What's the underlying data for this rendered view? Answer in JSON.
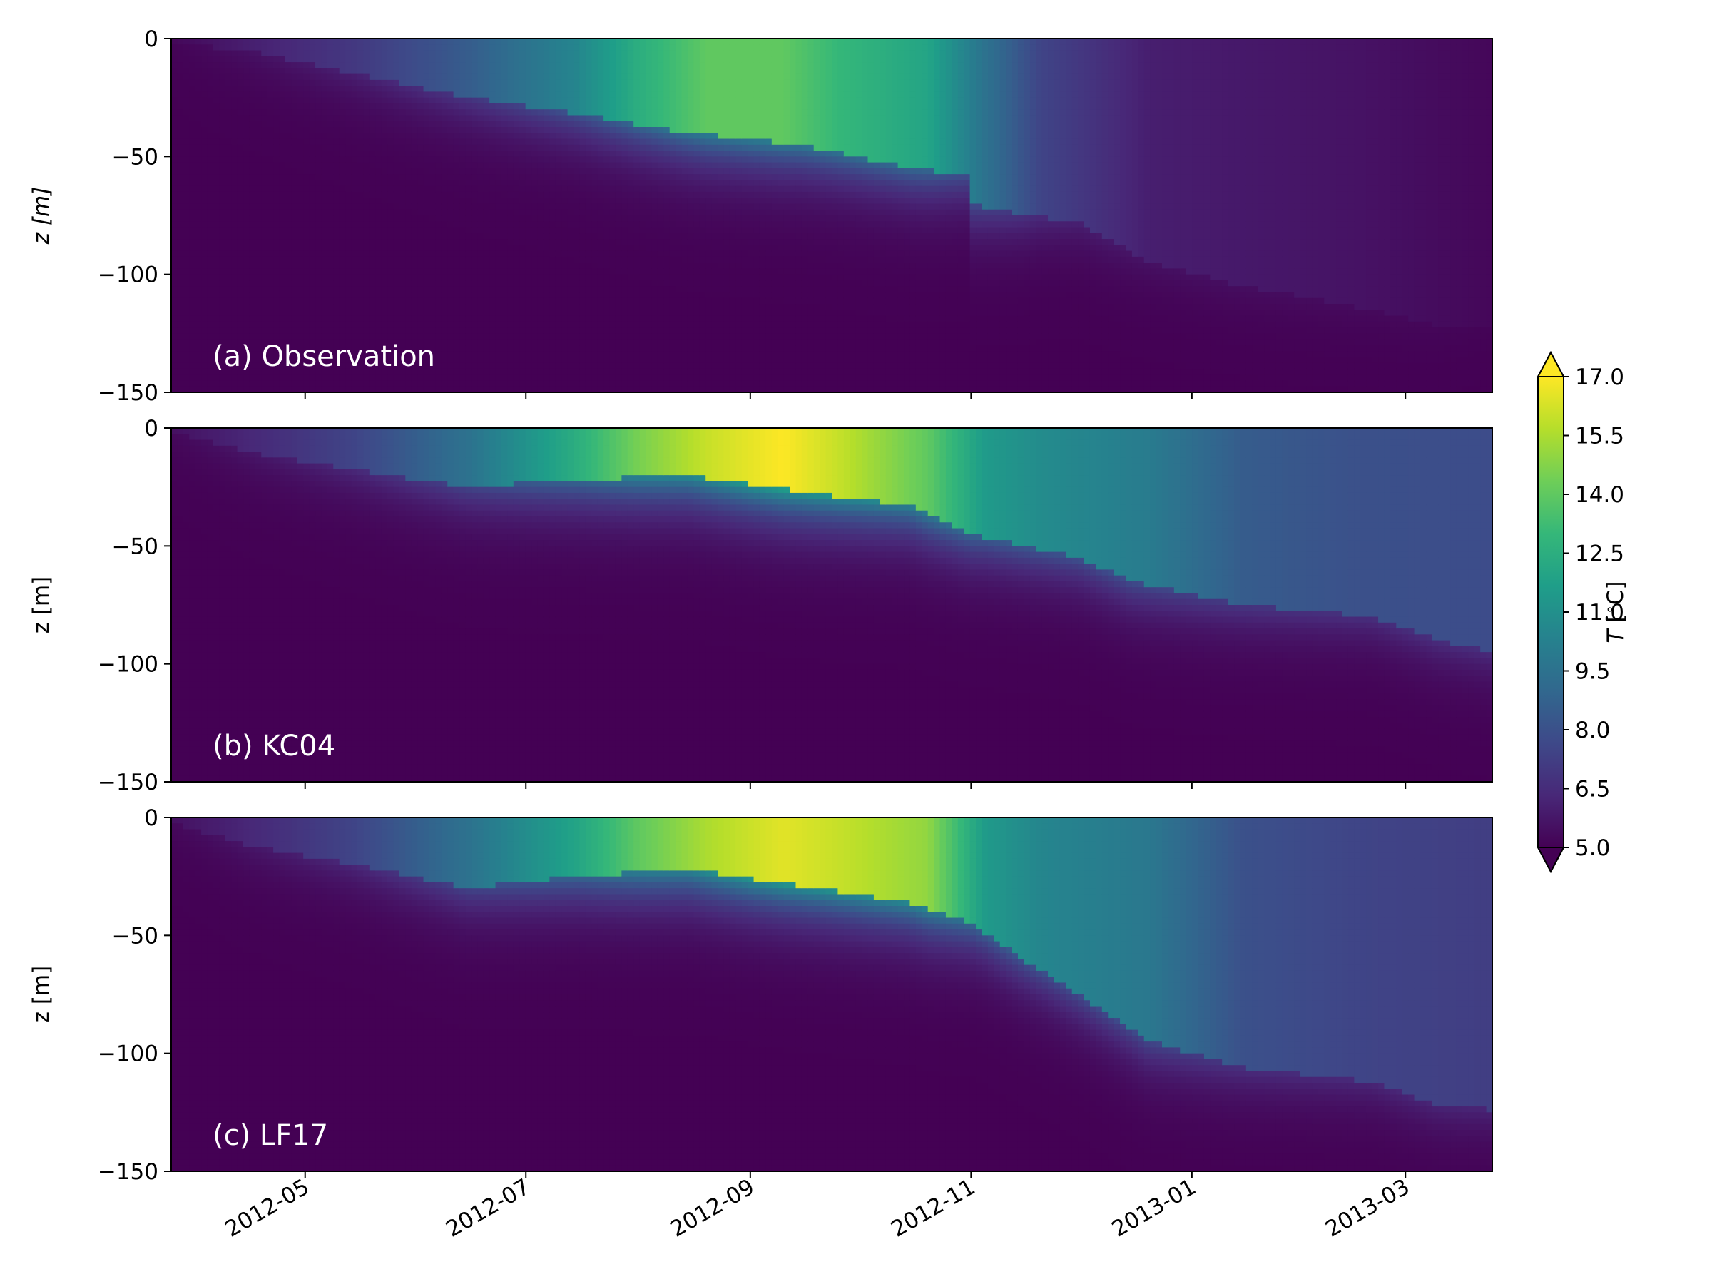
{
  "chart_data": [
    {
      "type": "heatmap",
      "panel_label": "(a) Observation",
      "ylabel": "z [m]",
      "ylim": [
        -150,
        0
      ],
      "yticks": [
        0,
        -50,
        -100,
        -150
      ],
      "mixed_layer_depth": [
        {
          "date": "2012-03-25",
          "z": -2
        },
        {
          "date": "2012-04-15",
          "z": -5
        },
        {
          "date": "2012-05-15",
          "z": -15
        },
        {
          "date": "2012-06-15",
          "z": -25
        },
        {
          "date": "2012-07-15",
          "z": -32
        },
        {
          "date": "2012-08-15",
          "z": -40
        },
        {
          "date": "2012-09-15",
          "z": -45
        },
        {
          "date": "2012-10-15",
          "z": -55
        },
        {
          "date": "2012-10-31",
          "z": -58
        },
        {
          "date": "2012-11-01",
          "z": -70
        },
        {
          "date": "2012-11-15",
          "z": -75
        },
        {
          "date": "2012-12-01",
          "z": -78
        },
        {
          "date": "2012-12-20",
          "z": -95
        },
        {
          "date": "2013-01-15",
          "z": -105
        },
        {
          "date": "2013-02-20",
          "z": -115
        },
        {
          "date": "2013-03-10",
          "z": -122
        },
        {
          "date": "2013-03-25",
          "z": -122
        }
      ],
      "surface_temperature": [
        {
          "date": "2012-03-25",
          "T": 5.2
        },
        {
          "date": "2012-04-15",
          "T": 6.0
        },
        {
          "date": "2012-05-15",
          "T": 7.0
        },
        {
          "date": "2012-06-15",
          "T": 8.5
        },
        {
          "date": "2012-07-15",
          "T": 10.5
        },
        {
          "date": "2012-08-01",
          "T": 12.5
        },
        {
          "date": "2012-08-20",
          "T": 14.0
        },
        {
          "date": "2012-09-10",
          "T": 14.0
        },
        {
          "date": "2012-09-25",
          "T": 13.0
        },
        {
          "date": "2012-10-20",
          "T": 12.0
        },
        {
          "date": "2012-11-05",
          "T": 9.5
        },
        {
          "date": "2012-11-20",
          "T": 7.5
        },
        {
          "date": "2012-12-20",
          "T": 6.0
        },
        {
          "date": "2013-01-15",
          "T": 5.8
        },
        {
          "date": "2013-02-15",
          "T": 5.6
        },
        {
          "date": "2013-03-25",
          "T": 5.2
        }
      ]
    },
    {
      "type": "heatmap",
      "panel_label": "(b) KC04",
      "ylabel": "z [m]",
      "ylim": [
        -150,
        0
      ],
      "yticks": [
        0,
        -50,
        -100,
        -150
      ],
      "mixed_layer_depth": [
        {
          "date": "2012-03-25",
          "z": -2
        },
        {
          "date": "2012-04-15",
          "z": -10
        },
        {
          "date": "2012-05-15",
          "z": -18
        },
        {
          "date": "2012-06-15",
          "z": -25
        },
        {
          "date": "2012-07-15",
          "z": -22
        },
        {
          "date": "2012-08-15",
          "z": -20
        },
        {
          "date": "2012-09-01",
          "z": -24
        },
        {
          "date": "2012-09-20",
          "z": -28
        },
        {
          "date": "2012-10-15",
          "z": -33
        },
        {
          "date": "2012-11-01",
          "z": -45
        },
        {
          "date": "2012-11-15",
          "z": -50
        },
        {
          "date": "2012-12-01",
          "z": -55
        },
        {
          "date": "2012-12-15",
          "z": -65
        },
        {
          "date": "2013-01-15",
          "z": -75
        },
        {
          "date": "2013-02-20",
          "z": -80
        },
        {
          "date": "2013-03-10",
          "z": -90
        },
        {
          "date": "2013-03-25",
          "z": -95
        }
      ],
      "surface_temperature": [
        {
          "date": "2012-03-25",
          "T": 5.5
        },
        {
          "date": "2012-04-15",
          "T": 6.3
        },
        {
          "date": "2012-05-15",
          "T": 7.5
        },
        {
          "date": "2012-06-15",
          "T": 9.5
        },
        {
          "date": "2012-07-15",
          "T": 12.5
        },
        {
          "date": "2012-08-01",
          "T": 14.5
        },
        {
          "date": "2012-08-20",
          "T": 16.0
        },
        {
          "date": "2012-09-10",
          "T": 17.0
        },
        {
          "date": "2012-09-25",
          "T": 16.0
        },
        {
          "date": "2012-10-20",
          "T": 14.0
        },
        {
          "date": "2012-11-05",
          "T": 11.5
        },
        {
          "date": "2012-11-20",
          "T": 10.8
        },
        {
          "date": "2012-12-20",
          "T": 10.0
        },
        {
          "date": "2013-01-15",
          "T": 8.5
        },
        {
          "date": "2013-02-15",
          "T": 8.0
        },
        {
          "date": "2013-03-25",
          "T": 7.8
        }
      ]
    },
    {
      "type": "heatmap",
      "panel_label": "(c) LF17",
      "ylabel": "z [m]",
      "ylim": [
        -150,
        0
      ],
      "yticks": [
        0,
        -50,
        -100,
        -150
      ],
      "xticks": [
        "2012-05",
        "2012-07",
        "2012-09",
        "2012-11",
        "2013-01",
        "2013-03"
      ],
      "mixed_layer_depth": [
        {
          "date": "2012-03-25",
          "z": -2
        },
        {
          "date": "2012-04-15",
          "z": -12
        },
        {
          "date": "2012-05-15",
          "z": -20
        },
        {
          "date": "2012-06-15",
          "z": -30
        },
        {
          "date": "2012-07-15",
          "z": -25
        },
        {
          "date": "2012-08-15",
          "z": -22
        },
        {
          "date": "2012-09-01",
          "z": -26
        },
        {
          "date": "2012-09-20",
          "z": -30
        },
        {
          "date": "2012-10-15",
          "z": -36
        },
        {
          "date": "2012-11-01",
          "z": -45
        },
        {
          "date": "2012-11-15",
          "z": -60
        },
        {
          "date": "2012-12-01",
          "z": -75
        },
        {
          "date": "2012-12-20",
          "z": -95
        },
        {
          "date": "2013-01-15",
          "z": -106
        },
        {
          "date": "2013-02-20",
          "z": -112
        },
        {
          "date": "2013-03-10",
          "z": -122
        },
        {
          "date": "2013-03-25",
          "z": -124
        }
      ],
      "surface_temperature": [
        {
          "date": "2012-03-25",
          "T": 5.5
        },
        {
          "date": "2012-04-15",
          "T": 6.3
        },
        {
          "date": "2012-05-15",
          "T": 7.5
        },
        {
          "date": "2012-06-15",
          "T": 9.5
        },
        {
          "date": "2012-07-15",
          "T": 12.0
        },
        {
          "date": "2012-08-01",
          "T": 14.0
        },
        {
          "date": "2012-08-20",
          "T": 15.5
        },
        {
          "date": "2012-09-10",
          "T": 16.5
        },
        {
          "date": "2012-09-25",
          "T": 16.0
        },
        {
          "date": "2012-10-20",
          "T": 15.0
        },
        {
          "date": "2012-11-05",
          "T": 11.5
        },
        {
          "date": "2012-11-20",
          "T": 10.5
        },
        {
          "date": "2012-12-20",
          "T": 9.8
        },
        {
          "date": "2013-01-15",
          "T": 8.0
        },
        {
          "date": "2013-02-15",
          "T": 7.5
        },
        {
          "date": "2013-03-25",
          "T": 7.2
        }
      ]
    }
  ],
  "xlim": [
    "2012-03-25",
    "2013-03-25"
  ],
  "colorbar": {
    "label": "T [°C]",
    "label_math": "T",
    "label_rest": " [",
    "label_degree": "∘",
    "label_unit": "C]",
    "min": 5.0,
    "max": 17.0,
    "extend": "both",
    "ticks": [
      "17.0",
      "15.5",
      "14.0",
      "12.5",
      "11.0",
      "9.5",
      "8.0",
      "6.5",
      "5.0"
    ],
    "colormap": "viridis"
  },
  "colors": {
    "viridis_stops": [
      "#440154",
      "#482878",
      "#3e4989",
      "#31688e",
      "#26828e",
      "#1f9e89",
      "#35b779",
      "#6ece58",
      "#b5de2b",
      "#fde725"
    ]
  }
}
